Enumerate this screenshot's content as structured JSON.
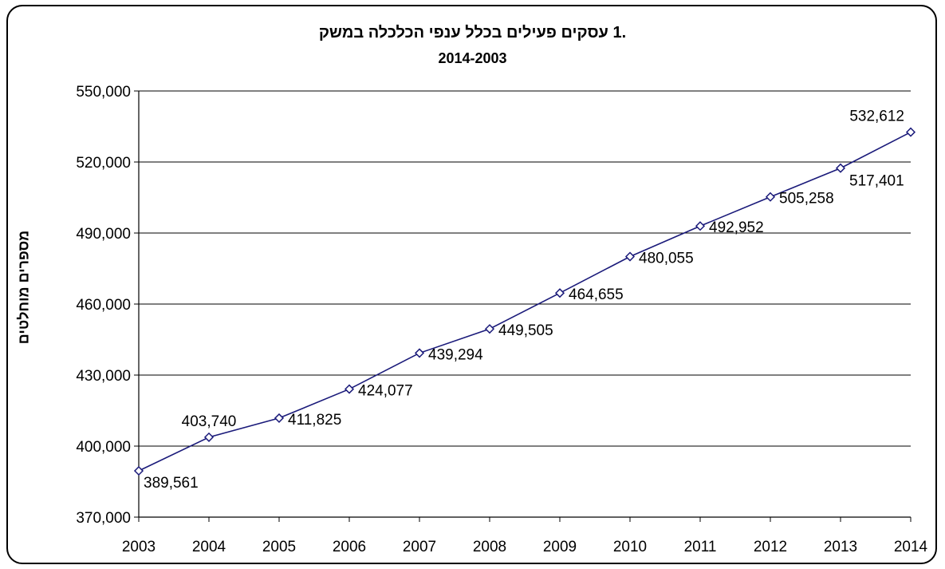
{
  "chart_data": {
    "type": "line",
    "title": ".1 עסקים פעילים בכלל ענפי הכלכלה במשק",
    "subtitle": "2014-2003",
    "xlabel": "",
    "ylabel": "מספרים מוחלטים",
    "categories": [
      "2003",
      "2004",
      "2005",
      "2006",
      "2007",
      "2008",
      "2009",
      "2010",
      "2011",
      "2012",
      "2013",
      "2014"
    ],
    "series": [
      {
        "values": [
          389561,
          403740,
          411825,
          424077,
          439294,
          449505,
          464655,
          480055,
          492952,
          505258,
          517401,
          532612
        ],
        "value_labels": [
          "389,561",
          "403,740",
          "411,825",
          "424,077",
          "439,294",
          "449,505",
          "464,655",
          "480,055",
          "492,952",
          "505,258",
          "517,401",
          "532,612"
        ]
      }
    ],
    "ylim": [
      370000,
      550000
    ],
    "yticks": [
      370000,
      400000,
      430000,
      460000,
      490000,
      520000,
      550000
    ],
    "ytick_labels": [
      "370,000",
      "400,000",
      "430,000",
      "460,000",
      "490,000",
      "520,000",
      "550,000"
    ],
    "grid": true,
    "legend": "none",
    "colors": {
      "line": "#1a1a7a",
      "marker_fill": "#ffffff",
      "grid": "#000000",
      "text": "#000000"
    }
  }
}
